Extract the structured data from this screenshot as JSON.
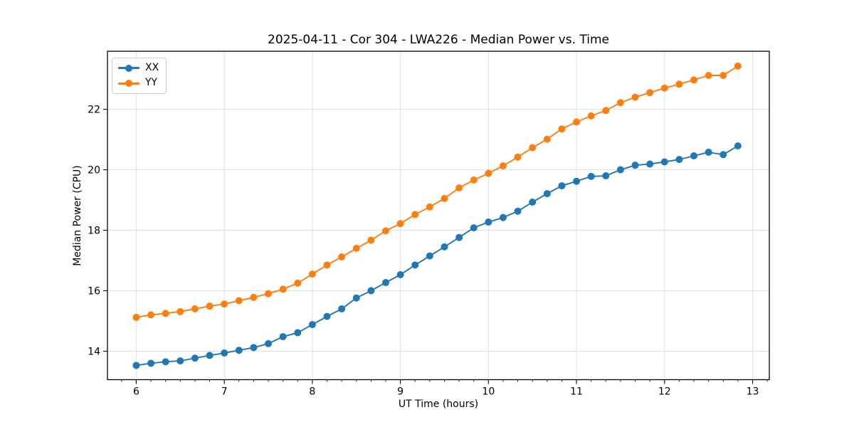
{
  "chart_data": {
    "type": "line",
    "title": "2025-04-11 - Cor 304 - LWA226 - Median Power vs. Time",
    "xlabel": "UT Time (hours)",
    "ylabel": "Median Power (CPU)",
    "grid": true,
    "legend_position": "upper left",
    "xlim": [
      5.673,
      13.19
    ],
    "ylim": [
      13.058,
      23.92
    ],
    "xticks": [
      6,
      7,
      8,
      9,
      10,
      11,
      12,
      13
    ],
    "yticks": [
      14,
      16,
      18,
      20,
      22
    ],
    "x_minor_tick_interval": 0.1667,
    "x": [
      6.0,
      6.1667,
      6.3333,
      6.5,
      6.6667,
      6.8333,
      7.0,
      7.1667,
      7.3333,
      7.5,
      7.6667,
      7.8333,
      8.0,
      8.1667,
      8.3333,
      8.5,
      8.6667,
      8.8333,
      9.0,
      9.1667,
      9.3333,
      9.5,
      9.6667,
      9.8333,
      10.0,
      10.1667,
      10.3333,
      10.5,
      10.6667,
      10.8333,
      11.0,
      11.1667,
      11.3333,
      11.5,
      11.6667,
      11.8333,
      12.0,
      12.1667,
      12.3333,
      12.5,
      12.6667,
      12.8333
    ],
    "series": [
      {
        "name": "XX",
        "color": "#1f77b4",
        "marker": "circle",
        "values": [
          13.53,
          13.6,
          13.65,
          13.68,
          13.77,
          13.86,
          13.94,
          14.03,
          14.12,
          14.25,
          14.48,
          14.61,
          14.88,
          15.15,
          15.4,
          15.76,
          16.0,
          16.27,
          16.53,
          16.85,
          17.15,
          17.45,
          17.76,
          18.08,
          18.27,
          18.42,
          18.63,
          18.93,
          19.21,
          19.47,
          19.62,
          19.78,
          19.8,
          20.0,
          20.15,
          20.19,
          20.26,
          20.34,
          20.46,
          20.58,
          20.5,
          20.79
        ]
      },
      {
        "name": "YY",
        "color": "#ff7f0e",
        "marker": "circle",
        "values": [
          15.12,
          15.2,
          15.25,
          15.31,
          15.4,
          15.49,
          15.56,
          15.67,
          15.78,
          15.9,
          16.05,
          16.25,
          16.55,
          16.85,
          17.12,
          17.4,
          17.67,
          17.98,
          18.22,
          18.52,
          18.77,
          19.05,
          19.4,
          19.66,
          19.88,
          20.13,
          20.42,
          20.73,
          21.01,
          21.35,
          21.58,
          21.78,
          21.96,
          22.22,
          22.4,
          22.55,
          22.7,
          22.83,
          22.97,
          23.12,
          23.12,
          23.43
        ]
      }
    ],
    "colors": {
      "grid": "#b0b0b0",
      "spine": "#000000",
      "background": "#ffffff"
    }
  }
}
